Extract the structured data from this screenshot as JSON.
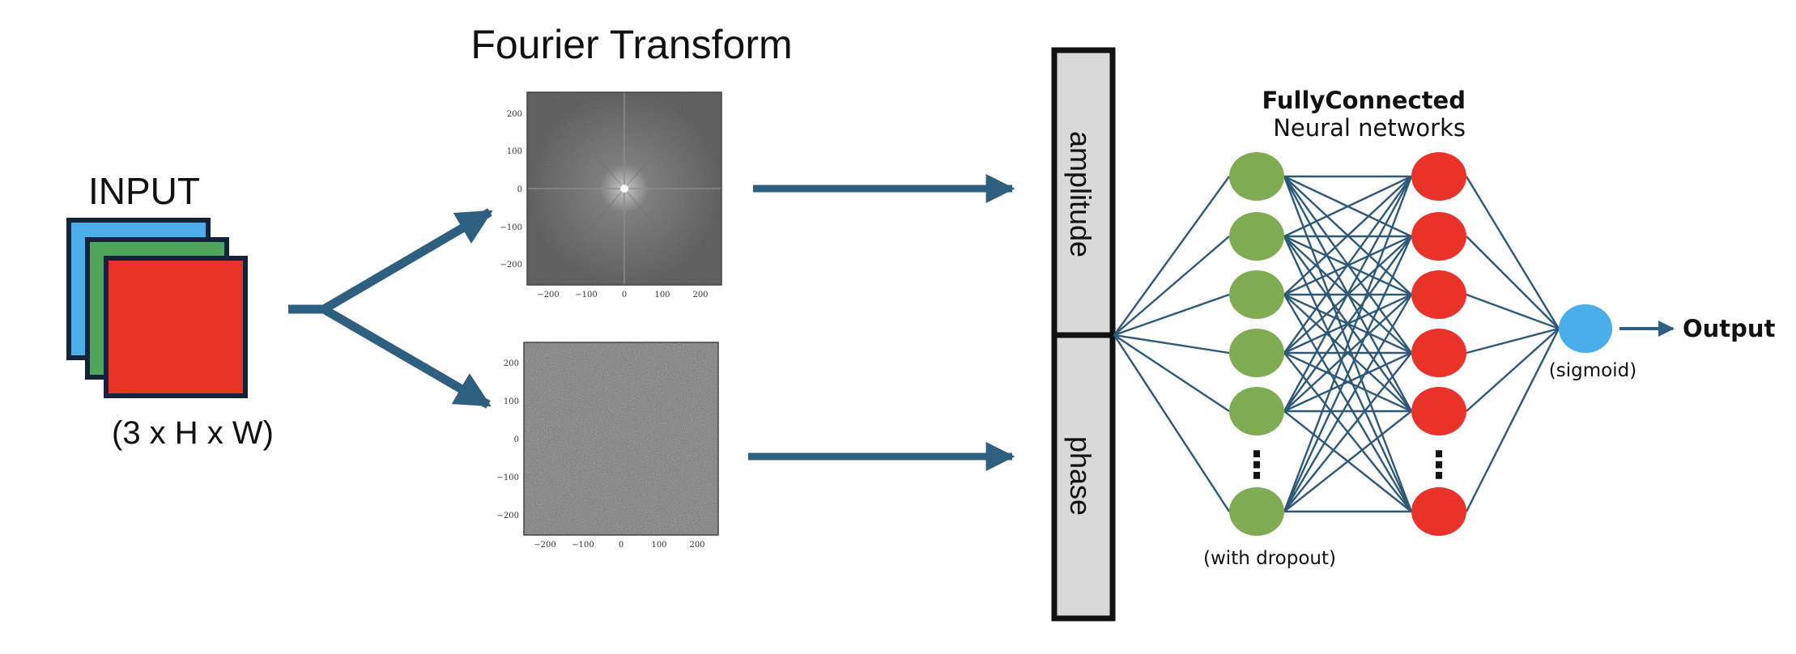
{
  "title": "Fourier Transform",
  "input": {
    "label": "INPUT",
    "dims": "(3 x H x W)",
    "colors": {
      "blue": "#4daee8",
      "green": "#4ea65c",
      "red": "#e83424",
      "border": "#13243a"
    }
  },
  "spectra": {
    "tick_labels": {
      "x": [
        "−200",
        "−100",
        "0",
        "100",
        "200"
      ],
      "y": [
        "200",
        "100",
        "0",
        "−100",
        "−200"
      ]
    }
  },
  "split": {
    "amplitude_label": "amplitude",
    "phase_label": "phase"
  },
  "network": {
    "title_bold": "FullyConnected",
    "title_sub": "Neural networks",
    "dropout_label": "(with dropout)",
    "sigmoid_label": "(sigmoid)",
    "output_label": "Output",
    "ellipsis": "⋮",
    "colors": {
      "layer1": "#7fab52",
      "layer2": "#e8322a",
      "out": "#4aaeea",
      "edge": "#2e5877"
    }
  },
  "colors": {
    "arrow": "#2f5f80",
    "bar_fill": "#d9d9d9",
    "bar_stroke": "#111111"
  }
}
